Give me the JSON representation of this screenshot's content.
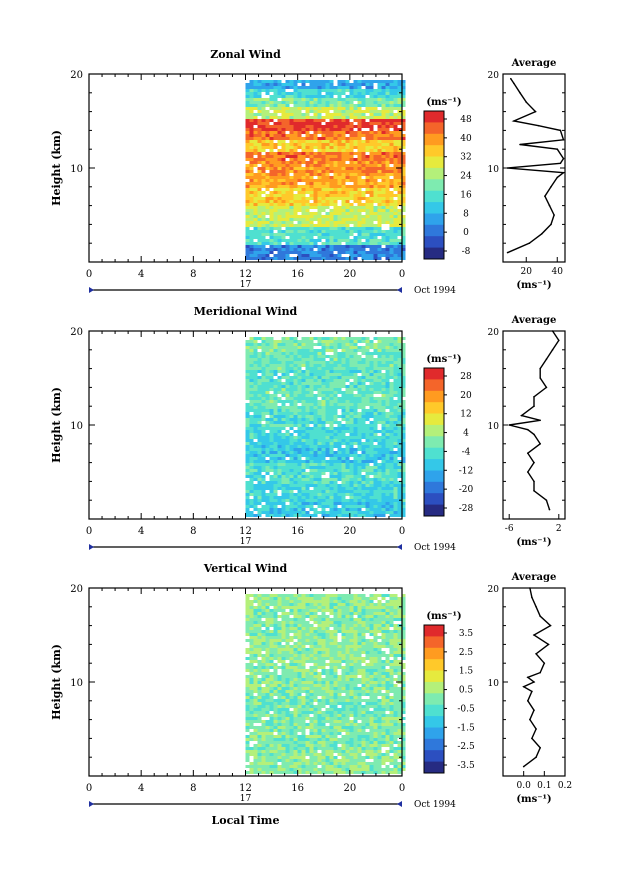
{
  "chart_data": [
    {
      "type": "heatmap",
      "title": "Zonal Wind",
      "ylabel": "Height (km)",
      "ylim": [
        0,
        20
      ],
      "yticks": [
        "20",
        "10"
      ],
      "xticks": [
        "0",
        "4",
        "8",
        "12",
        "16",
        "20",
        "0"
      ],
      "xlim": [
        0,
        24
      ],
      "data_start_hour": 12,
      "colorbar": {
        "unit": "(ms⁻¹)",
        "ticks": [
          "48",
          "40",
          "32",
          "24",
          "16",
          "8",
          "0",
          "-8"
        ],
        "range": [
          -8,
          48
        ]
      },
      "bands": [
        {
          "h0": 0.5,
          "h1": 2,
          "v": 4
        },
        {
          "h0": 2,
          "h1": 4,
          "v": 16
        },
        {
          "h0": 4,
          "h1": 6,
          "v": 26
        },
        {
          "h0": 6,
          "h1": 8,
          "v": 32
        },
        {
          "h0": 8,
          "h1": 9.5,
          "v": 36
        },
        {
          "h0": 9.5,
          "h1": 11,
          "v": 38
        },
        {
          "h0": 11,
          "h1": 12,
          "v": 40
        },
        {
          "h0": 12,
          "h1": 13,
          "v": 32
        },
        {
          "h0": 13,
          "h1": 14,
          "v": 40
        },
        {
          "h0": 14,
          "h1": 15.5,
          "v": 44
        },
        {
          "h0": 15.5,
          "h1": 16.5,
          "v": 26
        },
        {
          "h0": 16.5,
          "h1": 17.5,
          "v": 20
        },
        {
          "h0": 17.5,
          "h1": 18.5,
          "v": 14
        },
        {
          "h0": 18.5,
          "h1": 20,
          "v": 8
        }
      ],
      "average": {
        "title": "Average",
        "xlabel": "(ms⁻¹)",
        "xticks": [
          "20",
          "40"
        ],
        "xlim": [
          5,
          45
        ],
        "yticks": [
          "20",
          "10"
        ],
        "heights": [
          1,
          2,
          3,
          4,
          5,
          6,
          7,
          8,
          9,
          9.5,
          10,
          10.5,
          11,
          12,
          12.5,
          13,
          14,
          14.5,
          15,
          16,
          17,
          18,
          19,
          19.5
        ],
        "values": [
          8,
          22,
          30,
          36,
          38,
          35,
          32,
          36,
          40,
          44,
          8,
          42,
          44,
          40,
          16,
          44,
          42,
          28,
          12,
          26,
          20,
          16,
          12,
          10
        ]
      }
    },
    {
      "type": "heatmap",
      "title": "Meridional Wind",
      "ylabel": "Height (km)",
      "ylim": [
        0,
        20
      ],
      "yticks": [
        "20",
        "10"
      ],
      "xticks": [
        "0",
        "4",
        "8",
        "12",
        "16",
        "20",
        "0"
      ],
      "xlim": [
        0,
        24
      ],
      "data_start_hour": 12,
      "colorbar": {
        "unit": "(ms⁻¹)",
        "ticks": [
          "28",
          "20",
          "12",
          "4",
          "-4",
          "-12",
          "-20",
          "-28"
        ],
        "range": [
          -28,
          28
        ]
      },
      "bands": [
        {
          "h0": 0.5,
          "h1": 2,
          "v": -8
        },
        {
          "h0": 2,
          "h1": 4,
          "v": -6
        },
        {
          "h0": 4,
          "h1": 6,
          "v": -4
        },
        {
          "h0": 6,
          "h1": 8,
          "v": -8
        },
        {
          "h0": 8,
          "h1": 10,
          "v": -6
        },
        {
          "h0": 10,
          "h1": 12,
          "v": -4
        },
        {
          "h0": 12,
          "h1": 14,
          "v": -2
        },
        {
          "h0": 14,
          "h1": 16,
          "v": -3
        },
        {
          "h0": 16,
          "h1": 18,
          "v": -2
        },
        {
          "h0": 18,
          "h1": 20,
          "v": 0
        }
      ],
      "average": {
        "title": "Average",
        "xlabel": "(ms⁻¹)",
        "xticks": [
          "-6",
          "2"
        ],
        "xlim": [
          -7,
          3
        ],
        "yticks": [
          "20",
          "10"
        ],
        "heights": [
          1,
          2,
          3,
          4,
          5,
          6,
          7,
          8,
          9,
          9.5,
          10,
          10.5,
          11,
          12,
          13,
          14,
          15,
          16,
          17,
          18,
          19,
          20
        ],
        "values": [
          0.5,
          0,
          -2,
          -2,
          -3,
          -2,
          -3,
          -1,
          -2,
          -3,
          -6,
          -1,
          -4,
          -2,
          -2,
          0,
          -1,
          -1,
          0,
          1,
          2,
          1
        ]
      }
    },
    {
      "type": "heatmap",
      "title": "Vertical Wind",
      "ylabel": "Height (km)",
      "ylim": [
        0,
        20
      ],
      "yticks": [
        "20",
        "10"
      ],
      "xticks": [
        "0",
        "4",
        "8",
        "12",
        "16",
        "20",
        "0"
      ],
      "xlim": [
        0,
        24
      ],
      "data_start_hour": 12,
      "xlabel": "Local Time",
      "colorbar": {
        "unit": "(ms⁻¹)",
        "ticks": [
          "3.5",
          "2.5",
          "1.5",
          "0.5",
          "-0.5",
          "-1.5",
          "-2.5",
          "-3.5"
        ],
        "range": [
          -3.5,
          3.5
        ]
      },
      "bands": [
        {
          "h0": 0.5,
          "h1": 3,
          "v": 0.2
        },
        {
          "h0": 3,
          "h1": 6,
          "v": 0.0
        },
        {
          "h0": 6,
          "h1": 9,
          "v": -0.1
        },
        {
          "h0": 9,
          "h1": 12,
          "v": 0.1
        },
        {
          "h0": 12,
          "h1": 15,
          "v": 0.2
        },
        {
          "h0": 15,
          "h1": 18,
          "v": 0.1
        },
        {
          "h0": 18,
          "h1": 20,
          "v": 0.2
        }
      ],
      "average": {
        "title": "Average",
        "xlabel": "(ms⁻¹)",
        "xticks": [
          "0.0",
          "0.1",
          "0.2"
        ],
        "xlim": [
          -0.1,
          0.2
        ],
        "yticks": [
          "20",
          "10"
        ],
        "heights": [
          1,
          2,
          3,
          4,
          5,
          6,
          7,
          8,
          9,
          9.5,
          10,
          10.5,
          11,
          12,
          13,
          14,
          15,
          16,
          17,
          18,
          19,
          20
        ],
        "values": [
          0.0,
          0.06,
          0.08,
          0.04,
          0.06,
          0.03,
          0.05,
          0.02,
          0.04,
          0.0,
          0.05,
          0.02,
          0.08,
          0.1,
          0.06,
          0.12,
          0.05,
          0.13,
          0.08,
          0.06,
          0.04,
          0.03
        ]
      }
    }
  ],
  "date_axis": {
    "day_label": "17",
    "date_label": "Oct 1994"
  }
}
